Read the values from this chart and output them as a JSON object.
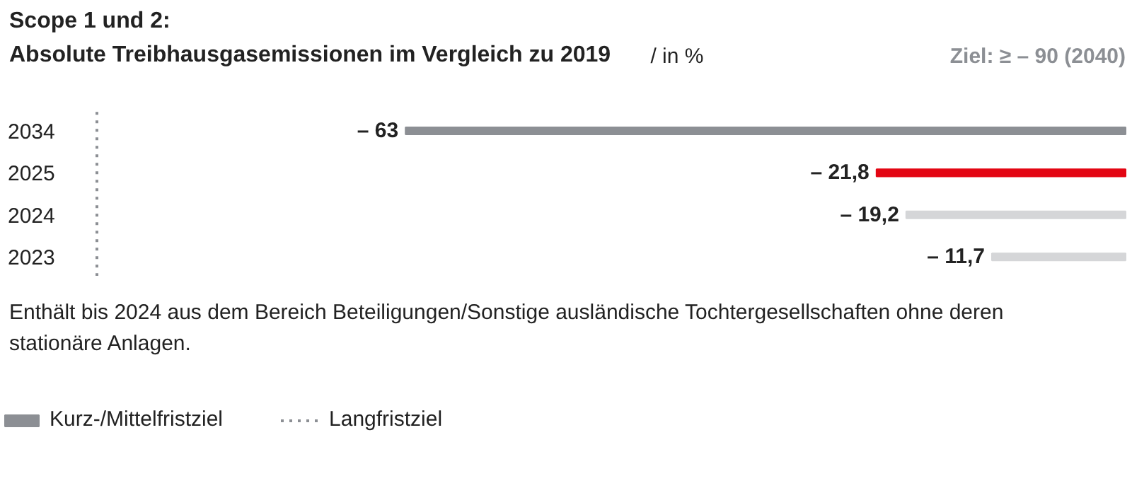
{
  "chart_data": {
    "type": "bar",
    "orientation": "horizontal",
    "title": "Scope 1 und 2:",
    "subtitle": "Absolute Treibhausgasemissionen im Vergleich zu 2019",
    "categories": [
      "2034",
      "2025",
      "2024",
      "2023"
    ],
    "series": [
      {
        "name": "Kurz-/Mittelfristziel",
        "color": "#8c8f94",
        "values": [
          -63,
          null,
          null,
          null
        ],
        "value_labels": [
          "– 63",
          null,
          null,
          null
        ]
      },
      {
        "colors": [
          "#8c8f94",
          "#e30613",
          "#d5d6d8",
          "#d5d6d8"
        ],
        "values": [
          null,
          -21.8,
          -19.2,
          -11.7
        ],
        "value_labels": [
          null,
          "– 21,8",
          "– 19,2",
          "– 11,7"
        ]
      }
    ],
    "ref_lines": [
      {
        "axis": "x",
        "value": -90,
        "label": "Langfristziel",
        "line_style": "dotted",
        "color": "#8c8f94"
      }
    ],
    "annotations": [
      "/ in %",
      "Ziel: ≥ – 90 (2040)",
      "Enthält bis 2024 aus dem Bereich Beteiligungen/Sonstige ausländische Tochtergesellschaften ohne deren stationäre Anlagen."
    ],
    "legend": "bottom left",
    "grid": false,
    "tick_labels": "y"
  }
}
